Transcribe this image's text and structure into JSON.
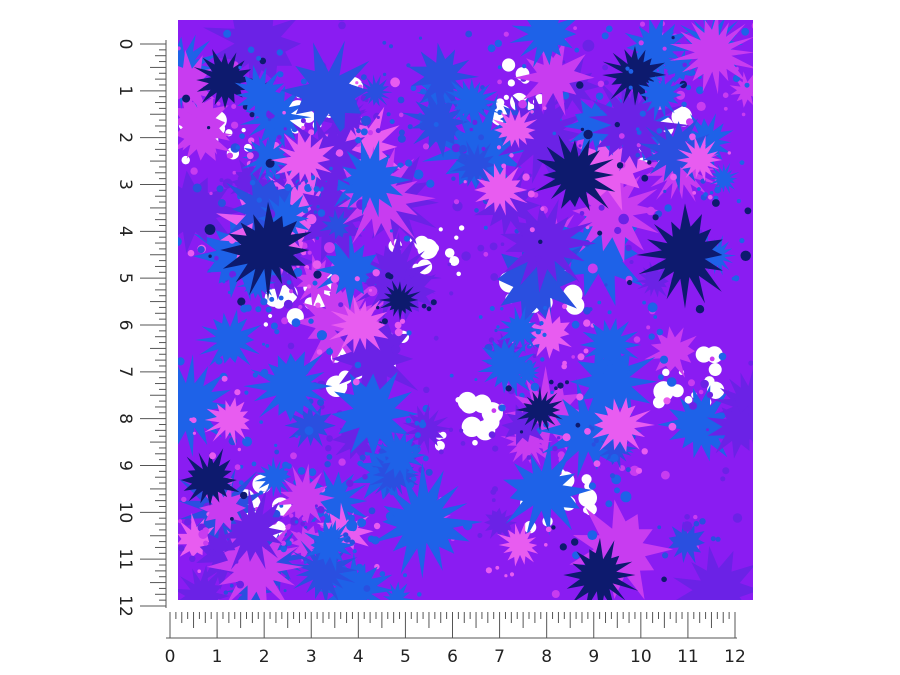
{
  "product": {
    "pattern_name": "paint splatter",
    "colors": {
      "base": "#8a1cf2",
      "navy": "#0d1a6e",
      "royal": "#2a4fe0",
      "blue": "#1e62e8",
      "violet": "#6b22e6",
      "magenta": "#c83cf0",
      "pink": "#e85cf0",
      "white": "#ffffff",
      "ruler": "#555555"
    }
  },
  "ruler": {
    "unit": "inches",
    "vertical_labels": [
      "0",
      "1",
      "2",
      "3",
      "4",
      "5",
      "6",
      "7",
      "8",
      "9",
      "10",
      "11",
      "12"
    ],
    "horizontal_labels": [
      "0",
      "1",
      "2",
      "3",
      "4",
      "5",
      "6",
      "7",
      "8",
      "9",
      "10",
      "11",
      "12"
    ]
  }
}
